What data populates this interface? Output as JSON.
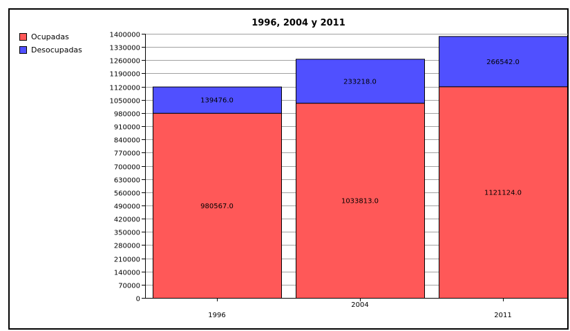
{
  "chart_data": {
    "type": "bar",
    "stacked": true,
    "title": "1996, 2004 y 2011",
    "categories": [
      "1996",
      "2004",
      "2011"
    ],
    "series": [
      {
        "name": "Ocupadas",
        "values": [
          980567.0,
          1033813.0,
          1121124.0
        ],
        "color": "#ff5858"
      },
      {
        "name": "Desocupadas",
        "values": [
          139476.0,
          233218.0,
          266542.0
        ],
        "color": "#5050ff"
      }
    ],
    "value_labels": [
      [
        "980567.0",
        "1033813.0",
        "1121124.0"
      ],
      [
        "139476.0",
        "233218.0",
        "266542.0"
      ]
    ],
    "ylim": [
      0,
      1400000
    ],
    "yticks": [
      "0",
      "70000",
      "140000",
      "210000",
      "280000",
      "350000",
      "420000",
      "490000",
      "560000",
      "630000",
      "700000",
      "770000",
      "840000",
      "910000",
      "980000",
      "1050000",
      "1120000",
      "1190000",
      "1260000",
      "1330000",
      "1400000"
    ],
    "grid": true,
    "legend": "left"
  }
}
